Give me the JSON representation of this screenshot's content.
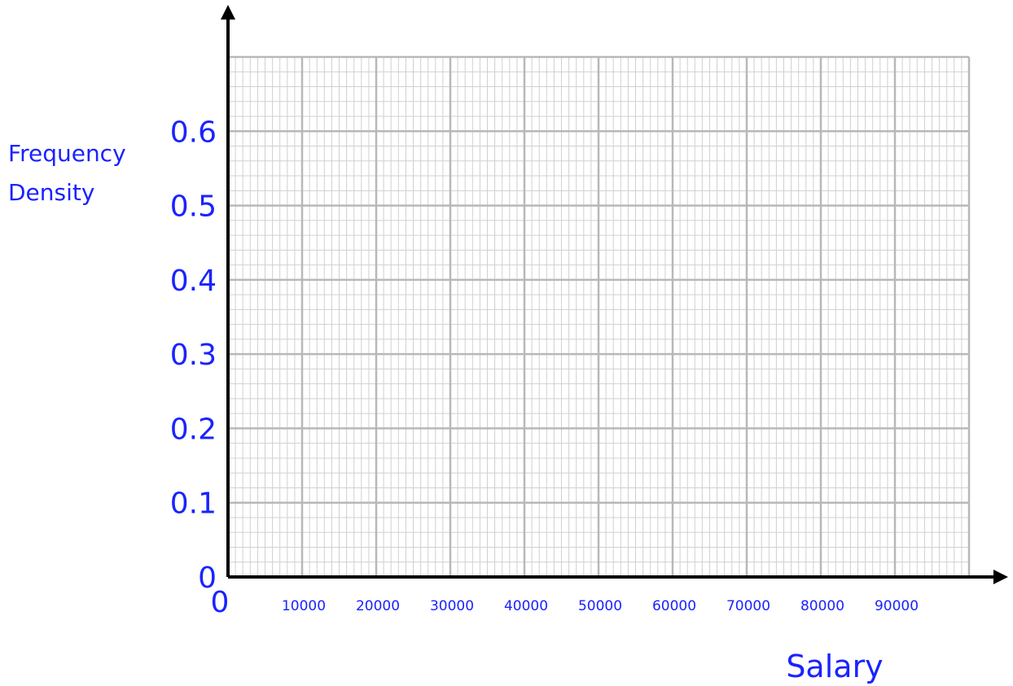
{
  "chart_data": {
    "type": "bar",
    "title": "",
    "xlabel": "Salary",
    "ylabel_lines": [
      "Frequency",
      "Density"
    ],
    "x_origin_label": "0",
    "x_tick_labels": [
      "10000",
      "20000",
      "30000",
      "40000",
      "50000",
      "60000",
      "70000",
      "80000",
      "90000"
    ],
    "y_tick_labels": [
      "0",
      "0.1",
      "0.2",
      "0.3",
      "0.4",
      "0.5",
      "0.6"
    ],
    "xlim": [
      0,
      100000
    ],
    "ylim": [
      0,
      0.7
    ],
    "grid": true,
    "series": [],
    "colors": {
      "label": "#1a23ff",
      "axis": "#000000",
      "grid_major": "#b8b8b8",
      "grid_minor": "#d0d0d0"
    }
  }
}
